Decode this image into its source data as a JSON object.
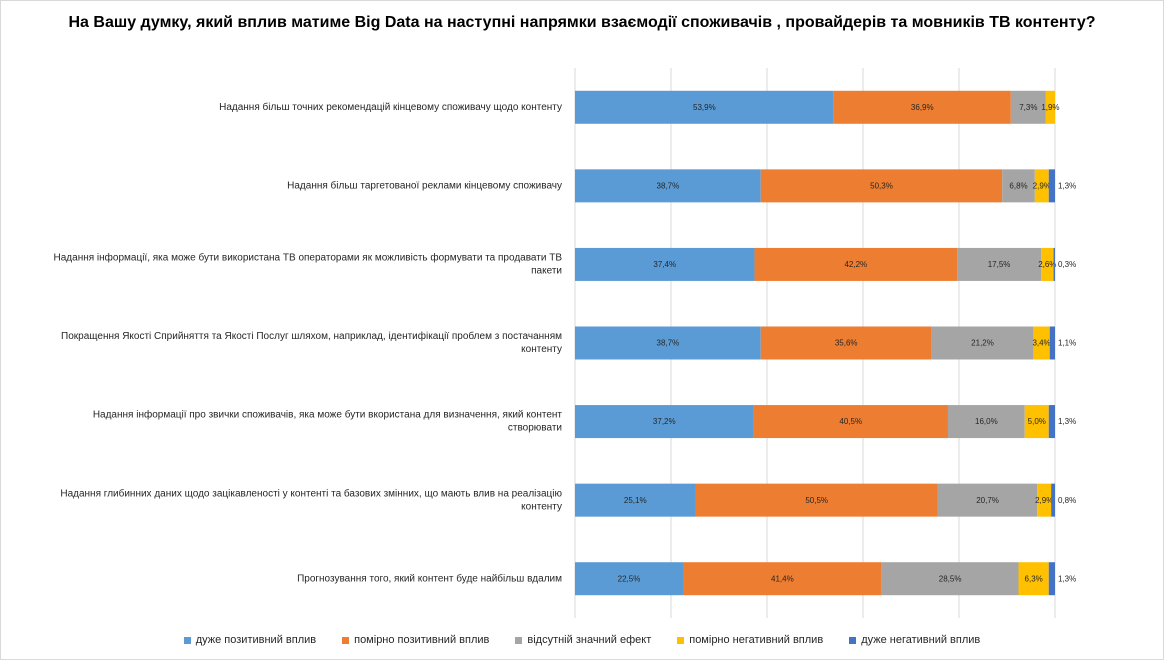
{
  "chart_data": {
    "type": "bar",
    "orientation": "horizontal",
    "stacked": true,
    "percent": true,
    "title": "На Вашу думку, який вплив матиме Big Data на наступні напрямки  взаємодії споживачів , провайдерів та мовників ТВ контенту?",
    "xlim": [
      0,
      100
    ],
    "grid": true,
    "legend_position": "bottom",
    "categories": [
      [
        "Надання більш точних рекомендацій кінцевому споживачу щодо контенту"
      ],
      [
        "Надання більш таргетованої реклами кінцевому споживачу"
      ],
      [
        "Надання інформації, яка може бути використана ТВ операторами як можливість формувати та продавати ТВ",
        "пакети"
      ],
      [
        "Покращення Якості Сприйняття та Якості Послуг шляхом, наприклад, ідентифікації проблем з постачанням",
        "контенту"
      ],
      [
        "Надання інформації про звички споживачів, яка може бути вкористана для визначення, який контент",
        "створювати"
      ],
      [
        "Надання глибинних даних щодо зацікавленості у контенті та базових змінних, що мають влив на реалізацію",
        "контенту"
      ],
      [
        "Прогнозування того, який контент буде найбільш вдалим"
      ]
    ],
    "series": [
      {
        "name": "дуже позитивний вплив",
        "color": "#5B9BD5",
        "values": [
          53.9,
          38.7,
          37.4,
          38.7,
          37.2,
          25.1,
          22.5
        ],
        "labels": [
          "53,9%",
          "38,7%",
          "37,4%",
          "38,7%",
          "37,2%",
          "25,1%",
          "22,5%"
        ]
      },
      {
        "name": "помірно позитивний вплив",
        "color": "#ED7D31",
        "values": [
          36.9,
          50.3,
          42.2,
          35.6,
          40.5,
          50.5,
          41.4
        ],
        "labels": [
          "36,9%",
          "50,3%",
          "42,2%",
          "35,6%",
          "40,5%",
          "50,5%",
          "41,4%"
        ]
      },
      {
        "name": "відсутній значний ефект",
        "color": "#A5A5A5",
        "values": [
          7.3,
          6.8,
          17.5,
          21.2,
          16.0,
          20.7,
          28.5
        ],
        "labels": [
          "7,3%",
          "6,8%",
          "17,5%",
          "21,2%",
          "16,0%",
          "20,7%",
          "28,5%"
        ]
      },
      {
        "name": "помірно негативний вплив",
        "color": "#FFC000",
        "values": [
          1.9,
          2.9,
          2.6,
          3.4,
          5.0,
          2.9,
          6.3
        ],
        "labels": [
          "1,9%",
          "2,9%",
          "2,6%",
          "3,4%",
          "5,0%",
          "2,9%",
          "6,3%"
        ]
      },
      {
        "name": "дуже негативний вплив",
        "color": "#4472C4",
        "values": [
          0,
          1.3,
          0.3,
          1.1,
          1.3,
          0.8,
          1.3
        ],
        "labels": [
          "",
          "1,3%",
          "0,3%",
          "1,1%",
          "1,3%",
          "0,8%",
          "1,3%"
        ]
      }
    ]
  }
}
